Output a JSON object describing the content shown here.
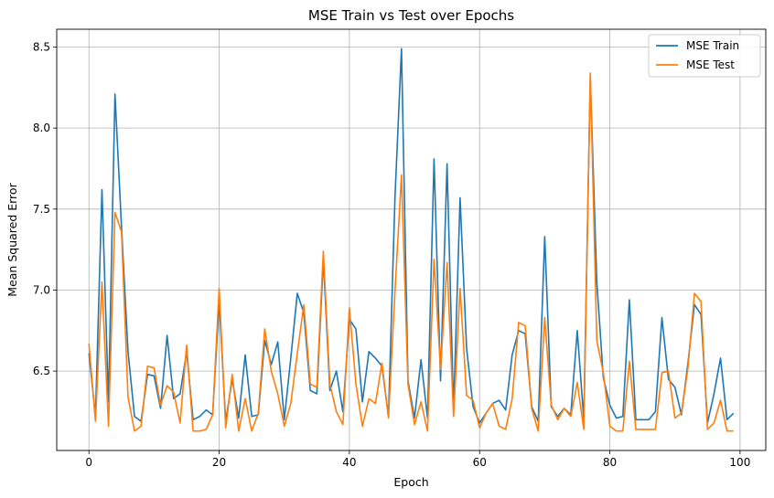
{
  "chart_data": {
    "type": "line",
    "title": "MSE Train vs Test over Epochs",
    "xlabel": "Epoch",
    "ylabel": "Mean Squared Error",
    "xlim": [
      -4.95,
      103.95
    ],
    "ylim": [
      6.01,
      8.61
    ],
    "xticks": [
      0,
      20,
      40,
      60,
      80,
      100
    ],
    "yticks": [
      6.5,
      7.0,
      7.5,
      8.0,
      8.5
    ],
    "xtick_labels": [
      "0",
      "20",
      "40",
      "60",
      "80",
      "100"
    ],
    "ytick_labels": [
      "6.5",
      "7.0",
      "7.5",
      "8.0",
      "8.5"
    ],
    "grid": true,
    "legend_position": "top-right",
    "x": [
      0,
      1,
      2,
      3,
      4,
      5,
      6,
      7,
      8,
      9,
      10,
      11,
      12,
      13,
      14,
      15,
      16,
      17,
      18,
      19,
      20,
      21,
      22,
      23,
      24,
      25,
      26,
      27,
      28,
      29,
      30,
      31,
      32,
      33,
      34,
      35,
      36,
      37,
      38,
      39,
      40,
      41,
      42,
      43,
      44,
      45,
      46,
      47,
      48,
      49,
      50,
      51,
      52,
      53,
      54,
      55,
      56,
      57,
      58,
      59,
      60,
      61,
      62,
      63,
      64,
      65,
      66,
      67,
      68,
      69,
      70,
      71,
      72,
      73,
      74,
      75,
      76,
      77,
      78,
      79,
      80,
      81,
      82,
      83,
      84,
      85,
      86,
      87,
      88,
      89,
      90,
      91,
      92,
      93,
      94,
      95,
      96,
      97,
      98,
      99
    ],
    "series": [
      {
        "name": "MSE Train",
        "color": "#1f77b4",
        "values": [
          6.61,
          6.22,
          7.62,
          6.31,
          8.21,
          7.39,
          6.62,
          6.22,
          6.19,
          6.48,
          6.47,
          6.27,
          6.72,
          6.33,
          6.36,
          6.62,
          6.2,
          6.22,
          6.26,
          6.23,
          6.93,
          6.19,
          6.45,
          6.21,
          6.6,
          6.22,
          6.23,
          6.69,
          6.54,
          6.68,
          6.2,
          6.58,
          6.98,
          6.86,
          6.38,
          6.36,
          7.19,
          6.38,
          6.5,
          6.25,
          6.82,
          6.76,
          6.31,
          6.62,
          6.58,
          6.53,
          6.22,
          7.57,
          8.49,
          6.44,
          6.21,
          6.57,
          6.21,
          7.81,
          6.44,
          7.78,
          6.26,
          7.57,
          6.64,
          6.28,
          6.18,
          6.24,
          6.3,
          6.32,
          6.26,
          6.6,
          6.75,
          6.73,
          6.28,
          6.19,
          7.33,
          6.28,
          6.22,
          6.27,
          6.23,
          6.75,
          6.2,
          8.31,
          7.05,
          6.46,
          6.29,
          6.21,
          6.22,
          6.94,
          6.2,
          6.2,
          6.2,
          6.25,
          6.83,
          6.45,
          6.4,
          6.23,
          6.55,
          6.91,
          6.85,
          6.18,
          6.36,
          6.58,
          6.2,
          6.24
        ]
      },
      {
        "name": "MSE Test",
        "color": "#ff7f0e",
        "values": [
          6.67,
          6.19,
          7.05,
          6.16,
          7.48,
          7.36,
          6.34,
          6.13,
          6.16,
          6.53,
          6.52,
          6.29,
          6.41,
          6.37,
          6.18,
          6.66,
          6.13,
          6.13,
          6.14,
          6.23,
          7.01,
          6.15,
          6.48,
          6.13,
          6.33,
          6.13,
          6.24,
          6.76,
          6.5,
          6.36,
          6.16,
          6.3,
          6.61,
          6.91,
          6.42,
          6.4,
          7.24,
          6.42,
          6.25,
          6.17,
          6.89,
          6.42,
          6.16,
          6.33,
          6.3,
          6.55,
          6.21,
          6.99,
          7.71,
          6.42,
          6.17,
          6.31,
          6.13,
          7.19,
          6.51,
          7.17,
          6.22,
          7.01,
          6.35,
          6.32,
          6.15,
          6.24,
          6.3,
          6.16,
          6.14,
          6.33,
          6.8,
          6.78,
          6.27,
          6.13,
          6.83,
          6.29,
          6.2,
          6.27,
          6.22,
          6.43,
          6.14,
          8.34,
          6.69,
          6.49,
          6.16,
          6.13,
          6.13,
          6.56,
          6.14,
          6.14,
          6.14,
          6.14,
          6.49,
          6.5,
          6.21,
          6.24,
          6.52,
          6.98,
          6.93,
          6.14,
          6.18,
          6.32,
          6.13,
          6.13
        ]
      }
    ]
  }
}
